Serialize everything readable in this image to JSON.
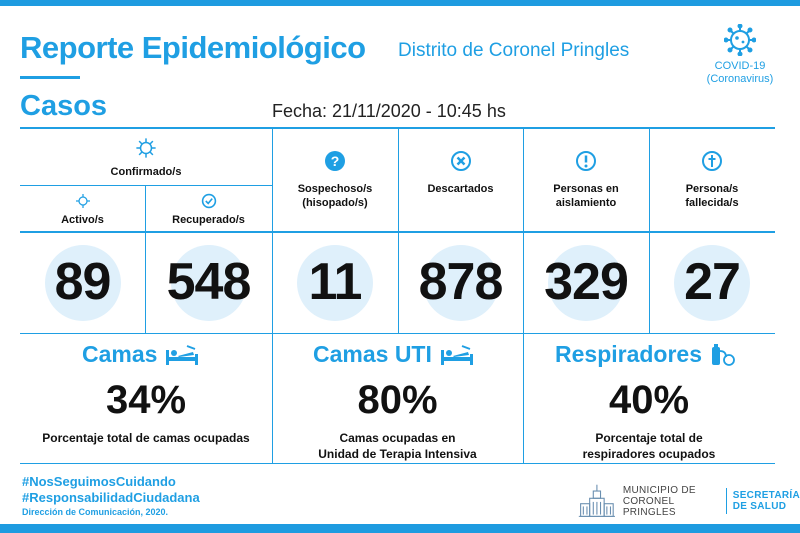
{
  "header": {
    "title": "Reporte Epidemiológico",
    "subtitle": "Distrito de Coronel Pringles",
    "badge_line1": "COVID-19",
    "badge_line2": "(Coronavirus)"
  },
  "cases": {
    "section_title": "Casos",
    "date_label": "Fecha: 21/11/2020 - 10:45 hs",
    "confirmed_label": "Confirmado/s",
    "columns": [
      {
        "label_line1": "Activo/s",
        "label_line2": "",
        "value": "89"
      },
      {
        "label_line1": "Recuperado/s",
        "label_line2": "",
        "value": "548"
      },
      {
        "label_line1": "Sospechoso/s",
        "label_line2": "(hisopado/s)",
        "value": "11"
      },
      {
        "label_line1": "Descartados",
        "label_line2": "",
        "value": "878"
      },
      {
        "label_line1": "Personas en",
        "label_line2": "aislamiento",
        "value": "329"
      },
      {
        "label_line1": "Persona/s",
        "label_line2": "fallecida/s",
        "value": "27"
      }
    ]
  },
  "resources": [
    {
      "title": "Camas",
      "percent": "34%",
      "desc_line1": "Porcentaje total de camas ocupadas",
      "desc_line2": ""
    },
    {
      "title": "Camas UTI",
      "percent": "80%",
      "desc_line1": "Camas ocupadas en",
      "desc_line2": "Unidad de Terapia Intensiva"
    },
    {
      "title": "Respiradores",
      "percent": "40%",
      "desc_line1": "Porcentaje total de",
      "desc_line2": "respiradores ocupados"
    }
  ],
  "footer": {
    "hashtag1": "#NosSeguimosCuidando",
    "hashtag2": "#ResponsabilidadCiudadana",
    "credit": "Dirección de Comunicación, 2020.",
    "muni_line1": "MUNICIPIO DE",
    "muni_line2": "CORONEL PRINGLES",
    "sec_line1": "SECRETARÍA",
    "sec_line2": "DE SALUD"
  },
  "colors": {
    "accent": "#1f9fe3",
    "text": "#111111",
    "circle_bg": "#dff0fb"
  }
}
